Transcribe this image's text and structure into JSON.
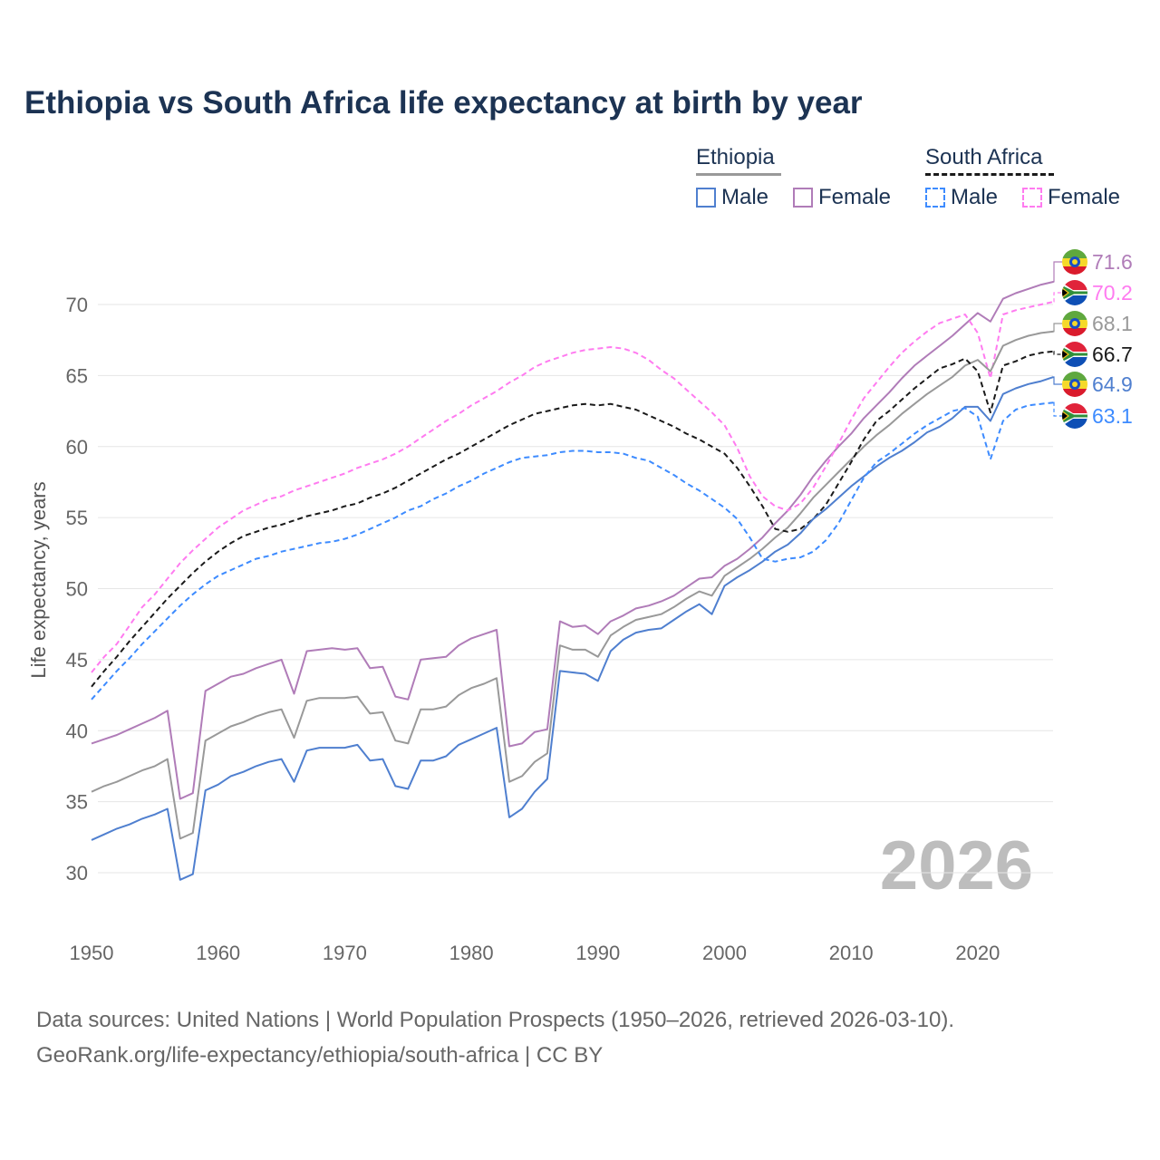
{
  "title": "Ethiopia vs South Africa life expectancy at birth by year",
  "legend": {
    "groups": [
      {
        "name": "Ethiopia",
        "items": [
          "Male",
          "Female"
        ]
      },
      {
        "name": "South Africa",
        "items": [
          "Male",
          "Female"
        ]
      }
    ]
  },
  "year_watermark": "2026",
  "footer": {
    "line1": "Data sources: United Nations | World Population Prospects (1950–2026, retrieved 2026-03-10).",
    "line2": "GeoRank.org/life-expectancy/ethiopia/south-africa | CC BY"
  },
  "chart_data": {
    "type": "line",
    "title": "Ethiopia vs South Africa life expectancy at birth by year",
    "xlabel": "",
    "ylabel": "Life expectancy, years",
    "xlim": [
      1950,
      2026
    ],
    "ylim": [
      27,
      73
    ],
    "x_ticks": [
      1950,
      1960,
      1970,
      1980,
      1990,
      2000,
      2010,
      2020
    ],
    "y_ticks": [
      30,
      35,
      40,
      45,
      50,
      55,
      60,
      65,
      70
    ],
    "grid": true,
    "x_start": 1950,
    "series": [
      {
        "name": "Ethiopia Female",
        "country": "Ethiopia",
        "color": "#b07cb8",
        "dash": false,
        "end_label": "71.6",
        "values": [
          39.1,
          39.4,
          39.7,
          40.1,
          40.5,
          40.9,
          41.4,
          35.2,
          35.6,
          42.8,
          43.3,
          43.8,
          44.0,
          44.4,
          44.7,
          45.0,
          42.6,
          45.6,
          45.7,
          45.8,
          45.7,
          45.8,
          44.4,
          44.5,
          42.4,
          42.2,
          45.0,
          45.1,
          45.2,
          46.0,
          46.5,
          46.8,
          47.1,
          38.9,
          39.1,
          39.9,
          40.1,
          47.7,
          47.3,
          47.4,
          46.8,
          47.7,
          48.1,
          48.6,
          48.8,
          49.1,
          49.5,
          50.1,
          50.7,
          50.8,
          51.6,
          52.1,
          52.8,
          53.6,
          54.6,
          55.5,
          56.6,
          57.9,
          59.0,
          60.0,
          60.9,
          62.0,
          62.9,
          63.8,
          64.8,
          65.7,
          66.4,
          67.1,
          67.8,
          68.6,
          69.4,
          68.8,
          70.4,
          70.8,
          71.1,
          71.4,
          71.6
        ]
      },
      {
        "name": "South Africa Female",
        "country": "South Africa",
        "color": "#ff7bf0",
        "dash": true,
        "end_label": "70.2",
        "values": [
          44.1,
          45.2,
          46.1,
          47.4,
          48.7,
          49.6,
          50.7,
          51.8,
          52.7,
          53.5,
          54.3,
          54.9,
          55.5,
          55.9,
          56.3,
          56.5,
          56.9,
          57.2,
          57.5,
          57.8,
          58.1,
          58.5,
          58.8,
          59.1,
          59.5,
          60.0,
          60.6,
          61.2,
          61.8,
          62.3,
          62.9,
          63.4,
          63.9,
          64.5,
          65.0,
          65.6,
          66.0,
          66.3,
          66.6,
          66.8,
          66.9,
          67.0,
          66.9,
          66.6,
          66.1,
          65.4,
          64.8,
          64.0,
          63.2,
          62.4,
          61.5,
          59.9,
          57.9,
          56.5,
          55.8,
          55.5,
          56.0,
          57.1,
          58.6,
          60.2,
          61.9,
          63.4,
          64.5,
          65.6,
          66.6,
          67.4,
          68.1,
          68.7,
          69.0,
          69.3,
          68.0,
          64.8,
          69.3,
          69.6,
          69.8,
          70.0,
          70.2
        ]
      },
      {
        "name": "Ethiopia",
        "country": "Ethiopia",
        "color": "#999999",
        "dash": false,
        "end_label": "68.1",
        "values": [
          35.7,
          36.1,
          36.4,
          36.8,
          37.2,
          37.5,
          38.0,
          32.4,
          32.8,
          39.3,
          39.8,
          40.3,
          40.6,
          41.0,
          41.3,
          41.5,
          39.5,
          42.1,
          42.3,
          42.3,
          42.3,
          42.4,
          41.2,
          41.3,
          39.3,
          39.1,
          41.5,
          41.5,
          41.7,
          42.5,
          43.0,
          43.3,
          43.7,
          36.4,
          36.8,
          37.8,
          38.4,
          46.0,
          45.7,
          45.7,
          45.2,
          46.7,
          47.3,
          47.8,
          48.0,
          48.2,
          48.7,
          49.3,
          49.8,
          49.5,
          50.9,
          51.5,
          52.1,
          52.8,
          53.6,
          54.3,
          55.3,
          56.4,
          57.3,
          58.2,
          59.1,
          60.0,
          60.8,
          61.5,
          62.3,
          63.0,
          63.7,
          64.3,
          64.9,
          65.7,
          66.1,
          65.3,
          67.1,
          67.5,
          67.8,
          68.0,
          68.1
        ]
      },
      {
        "name": "South Africa",
        "country": "South Africa",
        "color": "#1a1a1a",
        "dash": true,
        "end_label": "66.7",
        "values": [
          43.1,
          44.2,
          45.2,
          46.3,
          47.3,
          48.3,
          49.3,
          50.2,
          51.1,
          51.9,
          52.6,
          53.2,
          53.7,
          54.0,
          54.3,
          54.5,
          54.8,
          55.1,
          55.3,
          55.5,
          55.8,
          56.0,
          56.4,
          56.7,
          57.1,
          57.6,
          58.1,
          58.6,
          59.1,
          59.5,
          60.0,
          60.5,
          61.0,
          61.5,
          61.9,
          62.3,
          62.5,
          62.7,
          62.9,
          63.0,
          62.9,
          63.0,
          62.8,
          62.6,
          62.2,
          61.8,
          61.4,
          60.9,
          60.5,
          60.0,
          59.5,
          58.5,
          57.2,
          55.8,
          54.2,
          54.0,
          54.2,
          54.9,
          55.9,
          57.4,
          58.9,
          60.5,
          61.8,
          62.5,
          63.3,
          64.1,
          64.8,
          65.5,
          65.8,
          66.2,
          65.3,
          62.4,
          65.7,
          66.0,
          66.4,
          66.6,
          66.7
        ]
      },
      {
        "name": "Ethiopia Male",
        "country": "Ethiopia",
        "color": "#4f7fcf",
        "dash": false,
        "end_label": "64.9",
        "values": [
          32.3,
          32.7,
          33.1,
          33.4,
          33.8,
          34.1,
          34.5,
          29.5,
          29.9,
          35.8,
          36.2,
          36.8,
          37.1,
          37.5,
          37.8,
          38.0,
          36.4,
          38.6,
          38.8,
          38.8,
          38.8,
          39.0,
          37.9,
          38.0,
          36.1,
          35.9,
          37.9,
          37.9,
          38.2,
          39.0,
          39.4,
          39.8,
          40.2,
          33.9,
          34.5,
          35.7,
          36.6,
          44.2,
          44.1,
          44.0,
          43.5,
          45.6,
          46.4,
          46.9,
          47.1,
          47.2,
          47.8,
          48.4,
          48.9,
          48.2,
          50.2,
          50.8,
          51.3,
          51.9,
          52.6,
          53.1,
          53.9,
          54.9,
          55.6,
          56.4,
          57.2,
          57.9,
          58.6,
          59.2,
          59.7,
          60.3,
          61.0,
          61.4,
          62.0,
          62.8,
          62.8,
          61.8,
          63.7,
          64.1,
          64.4,
          64.6,
          64.9
        ]
      },
      {
        "name": "South Africa Male",
        "country": "South Africa",
        "color": "#3d8bff",
        "dash": true,
        "end_label": "63.1",
        "values": [
          42.2,
          43.2,
          44.2,
          45.1,
          46.1,
          47.0,
          47.9,
          48.8,
          49.6,
          50.3,
          50.9,
          51.3,
          51.7,
          52.1,
          52.3,
          52.6,
          52.8,
          53.0,
          53.2,
          53.3,
          53.5,
          53.8,
          54.2,
          54.6,
          55.0,
          55.5,
          55.8,
          56.3,
          56.7,
          57.2,
          57.6,
          58.1,
          58.5,
          58.9,
          59.2,
          59.3,
          59.4,
          59.6,
          59.7,
          59.7,
          59.6,
          59.6,
          59.5,
          59.2,
          59.0,
          58.5,
          58.0,
          57.4,
          56.9,
          56.3,
          55.7,
          54.9,
          53.6,
          52.1,
          51.9,
          52.1,
          52.2,
          52.6,
          53.4,
          54.6,
          56.2,
          57.8,
          58.9,
          59.5,
          60.2,
          60.9,
          61.5,
          62.0,
          62.5,
          62.7,
          62.1,
          59.1,
          61.8,
          62.6,
          62.9,
          63.0,
          63.1
        ]
      }
    ]
  }
}
